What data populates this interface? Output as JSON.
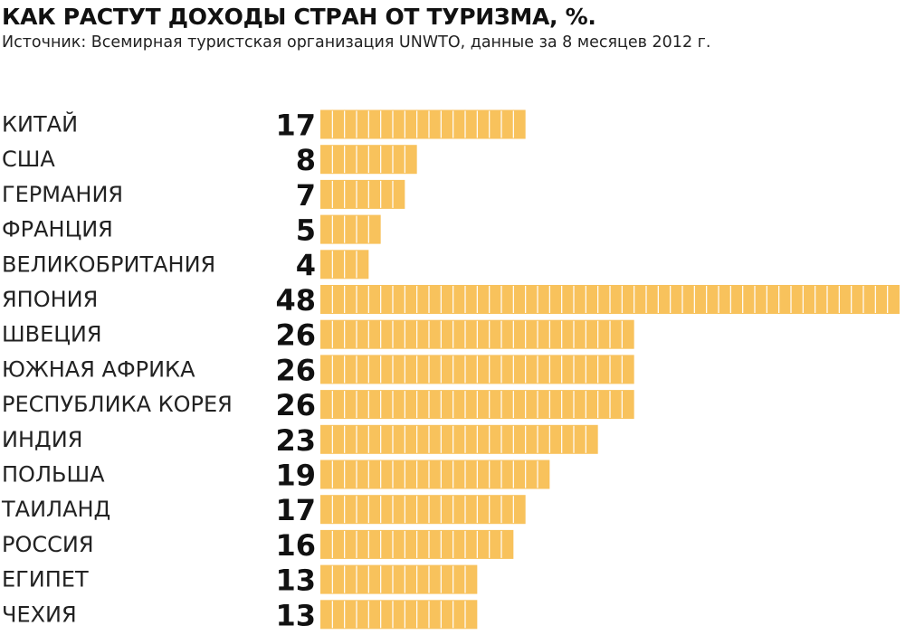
{
  "header": {
    "title": "КАК РАСТУТ ДОХОДЫ СТРАН ОТ ТУРИЗМА, %.",
    "subtitle": "Источник: Всемирная туристская организация UNWTO, данные за 8 месяцев 2012 г."
  },
  "chart_data": {
    "type": "bar",
    "orientation": "horizontal",
    "title": "КАК РАСТУТ ДОХОДЫ СТРАН ОТ ТУРИЗМА, %.",
    "subtitle": "Источник: Всемирная туристская организация UNWTO, данные за 8 месяцев 2012 г.",
    "categories": [
      "КИТАЙ",
      "США",
      "ГЕРМАНИЯ",
      "ФРАНЦИЯ",
      "ВЕЛИКОБРИТАНИЯ",
      "ЯПОНИЯ",
      "ШВЕЦИЯ",
      "ЮЖНАЯ АФРИКА",
      "РЕСПУБЛИКА КОРЕЯ",
      "ИНДИЯ",
      "ПОЛЬША",
      "ТАИЛАНД",
      "РОССИЯ",
      "ЕГИПЕТ",
      "ЧЕХИЯ"
    ],
    "values": [
      17,
      8,
      7,
      5,
      4,
      48,
      26,
      26,
      26,
      23,
      19,
      17,
      16,
      13,
      13
    ],
    "xlim": [
      0,
      48
    ],
    "grid": false,
    "legend": "none",
    "bar_color": "#F8C25C",
    "segment_line_color": "#FFFFFF"
  }
}
